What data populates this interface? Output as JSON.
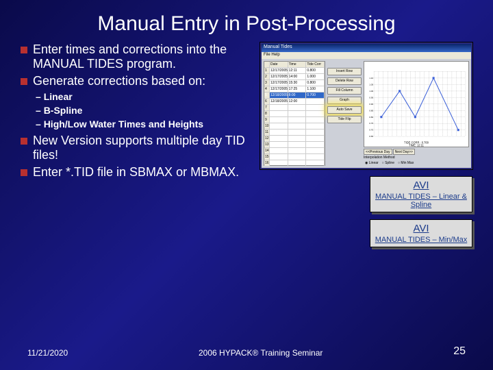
{
  "title": "Manual Entry in Post-Processing",
  "bullets": {
    "b1": "Enter times and corrections into the MANUAL TIDES program.",
    "b2": "Generate corrections based on:",
    "b3": "New Version supports multiple day TID files!",
    "b4": "Enter *.TID file in SBMAX or MBMAX.",
    "sub1": "Linear",
    "sub2": "B-Spline",
    "sub3": "High/Low Water Times and Heights"
  },
  "screenshot": {
    "window_title": "Manual Tides",
    "menu": "File  Help",
    "headers": {
      "n": "",
      "date": "Date",
      "time": "Time",
      "corr": "Tide Corr"
    },
    "rows": [
      {
        "n": "1",
        "date": "12/17/2005",
        "time": "12:11",
        "corr": "0.800"
      },
      {
        "n": "2",
        "date": "12/17/2005",
        "time": "14:00",
        "corr": "1.000"
      },
      {
        "n": "3",
        "date": "12/17/2005",
        "time": "15:30",
        "corr": "0.800"
      },
      {
        "n": "4",
        "date": "12/17/2005",
        "time": "17:25",
        "corr": "1.100"
      },
      {
        "n": "5",
        "date": "12/18/2005",
        "time": "8:00",
        "corr": "0.700",
        "hl": true
      },
      {
        "n": "6",
        "date": "12/18/2005",
        "time": "12:00",
        "corr": ""
      }
    ],
    "empty_rows": [
      "7",
      "8",
      "9",
      "10",
      "11",
      "12",
      "13",
      "14",
      "15",
      "16"
    ],
    "buttons": {
      "insert": "Insert Row",
      "delete": "Delete Row",
      "fill": "Fill Column",
      "graph": "Graph",
      "autosave": "Auto Save",
      "tideflip": "Tide Flip"
    },
    "graph": {
      "ylabel_min": "0.65",
      "ylabel_max": "1.10",
      "xlabel": "TIDE CORR : 0.700\nTIME: 12:11",
      "yvals": [
        0.8,
        1.0,
        0.8,
        1.1,
        0.7
      ],
      "points_x": [
        0.08,
        0.28,
        0.45,
        0.65,
        0.92
      ],
      "ylim": [
        0.65,
        1.15
      ],
      "line_color": "#3a5fd8",
      "grid_color": "#bbbbbb",
      "marker_color": "#3a5fd8"
    },
    "controls": {
      "prev": "<<Previous Day",
      "next": "Next Day>>",
      "method_label": "Interpolation Method",
      "r1": "Linear",
      "r2": "Spline",
      "r3": "Min Max"
    }
  },
  "avi1": {
    "title": "AVI",
    "sub": "MANUAL TIDES – Linear & Spline"
  },
  "avi2": {
    "title": "AVI",
    "sub": "MANUAL TIDES – Min/Max"
  },
  "footer": {
    "date": "11/21/2020",
    "center": "2006 HYPACK® Training Seminar",
    "page": "25"
  }
}
